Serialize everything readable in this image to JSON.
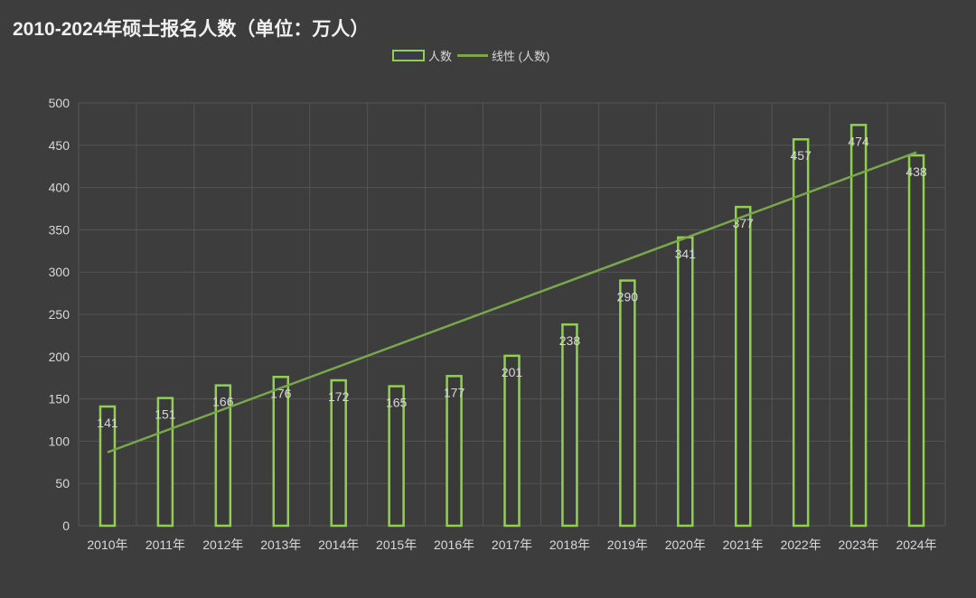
{
  "chart_data": {
    "type": "bar",
    "title": "2010-2024年硕士报名人数（单位：万人）",
    "categories": [
      "2010年",
      "2011年",
      "2012年",
      "2013年",
      "2014年",
      "2015年",
      "2016年",
      "2017年",
      "2018年",
      "2019年",
      "2020年",
      "2021年",
      "2022年",
      "2023年",
      "2024年"
    ],
    "series": [
      {
        "name": "人数",
        "type": "bar",
        "values": [
          141,
          151,
          166,
          176,
          172,
          165,
          177,
          201,
          238,
          290,
          341,
          377,
          457,
          474,
          438
        ]
      },
      {
        "name": "线性 (人数)",
        "type": "linear-trendline"
      }
    ],
    "ylim": [
      0,
      500
    ],
    "yticks": [
      0,
      50,
      100,
      150,
      200,
      250,
      300,
      350,
      400,
      450,
      500
    ],
    "xlabel": "",
    "ylabel": "",
    "grid": true,
    "legend": "top-center",
    "colors": {
      "bar_stroke": "#8fd14f",
      "trend": "#78a84a",
      "grid": "#555555",
      "text": "#d8d8d8"
    }
  }
}
